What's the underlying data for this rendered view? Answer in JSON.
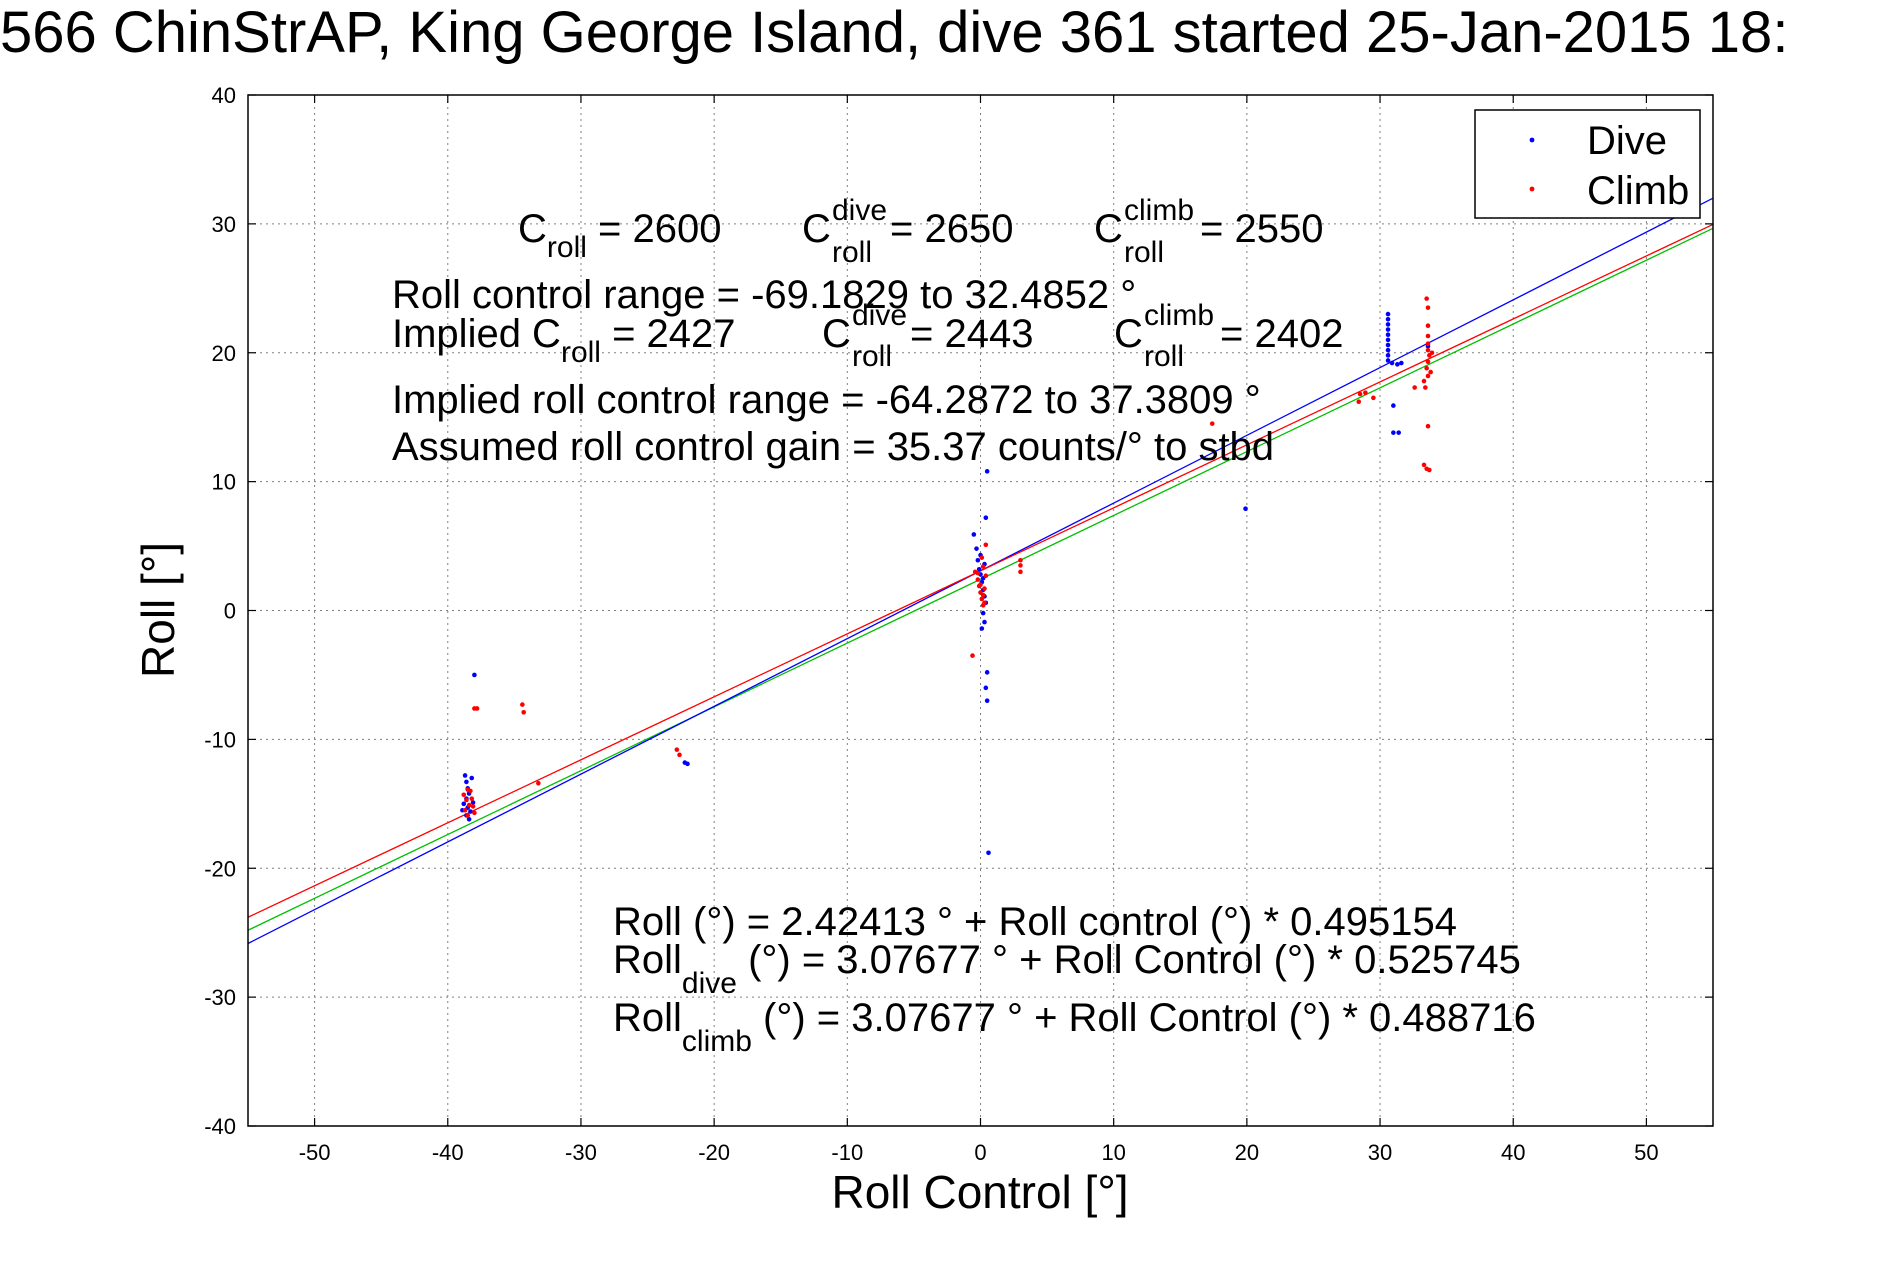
{
  "title": "566 ChinStrAP, King George Island, dive 361 started 25-Jan-2015 18:",
  "colors": {
    "dive": "#0000ff",
    "climb": "#ff0000",
    "fit_all": "#00c000",
    "fit_dive": "#0000ff",
    "fit_climb": "#ff0000",
    "grid": "#808080"
  },
  "chart_data": {
    "type": "scatter",
    "xlabel": "Roll Control [°]",
    "ylabel": "Roll [°]",
    "xlim": [
      -55,
      55
    ],
    "ylim": [
      -40,
      40
    ],
    "xticks": [
      -50,
      -40,
      -30,
      -20,
      -10,
      0,
      10,
      20,
      30,
      40,
      50
    ],
    "yticks": [
      -40,
      -30,
      -20,
      -10,
      0,
      10,
      20,
      30,
      40
    ],
    "grid": true,
    "legend_position": "top-right",
    "legend": [
      "Dive",
      "Climb"
    ],
    "series": [
      {
        "name": "Dive",
        "points": [
          [
            -38.7,
            -12.8
          ],
          [
            -38.6,
            -13.3
          ],
          [
            -38.5,
            -13.8
          ],
          [
            -38.4,
            -14.2
          ],
          [
            -38.6,
            -14.6
          ],
          [
            -38.8,
            -15.0
          ],
          [
            -38.5,
            -15.3
          ],
          [
            -38.3,
            -15.6
          ],
          [
            -38.6,
            -15.9
          ],
          [
            -38.4,
            -16.2
          ],
          [
            -38.2,
            -13.0
          ],
          [
            -38.9,
            -15.5
          ],
          [
            -38.1,
            -14.9
          ],
          [
            -38.0,
            -5.0
          ],
          [
            -22.2,
            -11.8
          ],
          [
            -22.0,
            -11.9
          ],
          [
            -0.5,
            5.9
          ],
          [
            -0.3,
            4.8
          ],
          [
            -0.2,
            3.9
          ],
          [
            -0.1,
            3.2
          ],
          [
            0.0,
            2.8
          ],
          [
            0.1,
            2.2
          ],
          [
            0.2,
            1.6
          ],
          [
            0.3,
            1.1
          ],
          [
            0.4,
            0.6
          ],
          [
            0.2,
            -0.2
          ],
          [
            0.3,
            -0.9
          ],
          [
            0.1,
            -1.4
          ],
          [
            0.4,
            7.2
          ],
          [
            0.5,
            10.8
          ],
          [
            0.5,
            -4.8
          ],
          [
            0.4,
            -6.0
          ],
          [
            0.5,
            -7.0
          ],
          [
            0.6,
            -18.8
          ],
          [
            0.0,
            4.3
          ],
          [
            0.3,
            3.6
          ],
          [
            0.2,
            2.5
          ],
          [
            19.9,
            7.9
          ],
          [
            30.6,
            23.0
          ],
          [
            30.6,
            22.6
          ],
          [
            30.6,
            22.2
          ],
          [
            30.6,
            21.8
          ],
          [
            30.6,
            21.4
          ],
          [
            30.6,
            21.0
          ],
          [
            30.6,
            20.6
          ],
          [
            30.6,
            20.2
          ],
          [
            30.6,
            19.8
          ],
          [
            30.6,
            19.4
          ],
          [
            30.9,
            19.2
          ],
          [
            31.3,
            19.1
          ],
          [
            31.6,
            19.2
          ],
          [
            31.0,
            15.9
          ],
          [
            31.0,
            13.8
          ],
          [
            31.4,
            13.8
          ],
          [
            33.6,
            20.5
          ]
        ]
      },
      {
        "name": "Climb",
        "points": [
          [
            -38.8,
            -14.3
          ],
          [
            -38.6,
            -14.7
          ],
          [
            -38.4,
            -15.1
          ],
          [
            -38.7,
            -15.5
          ],
          [
            -38.5,
            -15.9
          ],
          [
            -38.3,
            -14.0
          ],
          [
            -38.2,
            -14.6
          ],
          [
            -38.1,
            -15.2
          ],
          [
            -38.0,
            -15.7
          ],
          [
            -38.5,
            -13.9
          ],
          [
            -38.0,
            -7.6
          ],
          [
            -37.8,
            -7.6
          ],
          [
            -34.4,
            -7.3
          ],
          [
            -34.3,
            -7.9
          ],
          [
            -33.2,
            -13.4
          ],
          [
            -22.8,
            -10.8
          ],
          [
            -22.6,
            -11.2
          ],
          [
            -0.6,
            -3.5
          ],
          [
            -0.4,
            3.0
          ],
          [
            -0.2,
            2.4
          ],
          [
            -0.1,
            1.9
          ],
          [
            0.0,
            1.4
          ],
          [
            0.1,
            0.9
          ],
          [
            0.2,
            0.4
          ],
          [
            0.3,
            1.7
          ],
          [
            0.4,
            2.7
          ],
          [
            0.2,
            3.4
          ],
          [
            0.1,
            4.1
          ],
          [
            -0.2,
            2.9
          ],
          [
            0.0,
            2.0
          ],
          [
            0.2,
            1.2
          ],
          [
            0.3,
            0.6
          ],
          [
            0.4,
            5.1
          ],
          [
            3.0,
            3.9
          ],
          [
            3.0,
            3.5
          ],
          [
            3.0,
            3.0
          ],
          [
            17.4,
            14.5
          ],
          [
            28.4,
            16.2
          ],
          [
            28.5,
            16.8
          ],
          [
            28.9,
            16.9
          ],
          [
            29.5,
            16.5
          ],
          [
            32.6,
            17.3
          ],
          [
            33.3,
            17.8
          ],
          [
            33.4,
            17.3
          ],
          [
            33.5,
            24.2
          ],
          [
            33.6,
            23.5
          ],
          [
            33.6,
            22.1
          ],
          [
            33.6,
            21.3
          ],
          [
            33.6,
            20.7
          ],
          [
            33.6,
            20.2
          ],
          [
            33.7,
            19.8
          ],
          [
            33.6,
            19.3
          ],
          [
            33.5,
            18.8
          ],
          [
            33.6,
            18.2
          ],
          [
            33.8,
            18.5
          ],
          [
            33.6,
            14.3
          ],
          [
            33.3,
            11.3
          ],
          [
            33.5,
            11.0
          ],
          [
            33.7,
            10.9
          ],
          [
            33.9,
            20.0
          ]
        ]
      }
    ],
    "fit_lines": [
      {
        "name": "all",
        "intercept": 2.42413,
        "slope": 0.495154
      },
      {
        "name": "dive",
        "intercept": 3.07677,
        "slope": 0.525745
      },
      {
        "name": "climb",
        "intercept": 3.07677,
        "slope": 0.488716
      }
    ],
    "annotations": {
      "c_roll_label": "C",
      "c_roll_sub": "roll",
      "c_roll_val": " = 2600",
      "c_dive_sup": "dive",
      "c_dive_val": " = 2650",
      "c_climb_sup": "climb",
      "c_climb_val": " = 2550",
      "roll_range": "Roll control range = -69.1829 to 32.4852 °",
      "implied_prefix": "Implied C",
      "implied_val": " = 2427",
      "implied_dive_val": " = 2443",
      "implied_climb_val": " = 2402",
      "implied_range": "Implied roll control range = -64.2872 to 37.3809 °",
      "gain": "Assumed roll control gain = 35.37 counts/° to stbd",
      "eq_all": "Roll (°) = 2.42413 ° + Roll control (°) * 0.495154",
      "eq_dive_a": "Roll",
      "eq_dive_sub": "dive",
      "eq_dive_b": " (°) = 3.07677 ° + Roll Control (°) * 0.525745",
      "eq_climb_a": "Roll",
      "eq_climb_sub": "climb",
      "eq_climb_b": " (°) = 3.07677 ° + Roll Control (°) * 0.488716"
    }
  }
}
